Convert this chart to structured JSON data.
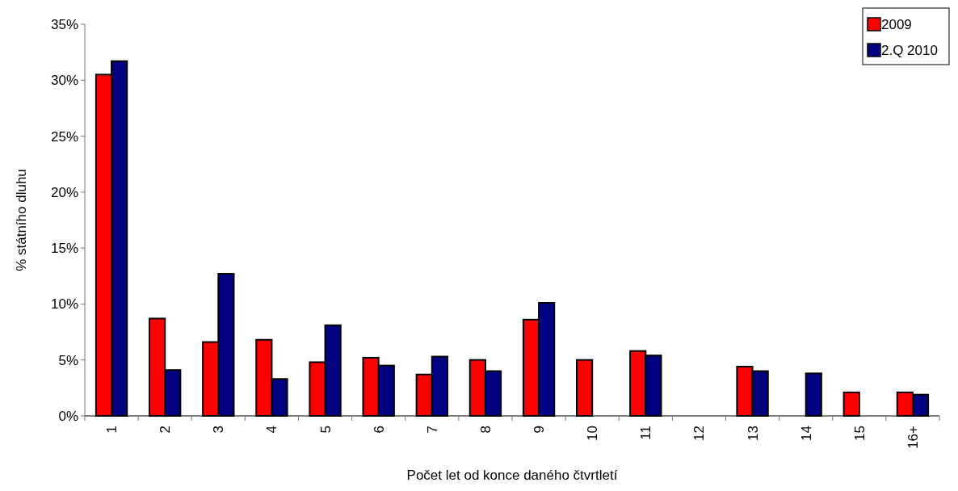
{
  "chart_data": {
    "type": "bar",
    "xlabel": "Počet let od konce daného čtvrtletí",
    "ylabel": "% státního dluhu",
    "categories": [
      "1",
      "2",
      "3",
      "4",
      "5",
      "6",
      "7",
      "8",
      "9",
      "10",
      "11",
      "12",
      "13",
      "14",
      "15",
      "16+"
    ],
    "series": [
      {
        "name": "2009",
        "color": "#ff0000",
        "values": [
          30.5,
          8.7,
          6.6,
          6.8,
          4.8,
          5.2,
          3.7,
          5.0,
          8.6,
          5.0,
          5.8,
          null,
          4.4,
          null,
          2.1,
          2.1
        ]
      },
      {
        "name": "2.Q 2010",
        "color": "#000080",
        "values": [
          31.7,
          4.1,
          12.7,
          3.3,
          8.1,
          4.5,
          5.3,
          4.0,
          10.1,
          null,
          5.4,
          0,
          4.0,
          3.8,
          0,
          1.9
        ]
      }
    ],
    "ylim": [
      0,
      35
    ],
    "yticks": [
      {
        "value": 0,
        "label": "0%"
      },
      {
        "value": 5,
        "label": "5%"
      },
      {
        "value": 10,
        "label": "10%"
      },
      {
        "value": 15,
        "label": "15%"
      },
      {
        "value": 20,
        "label": "20%"
      },
      {
        "value": 25,
        "label": "25%"
      },
      {
        "value": 30,
        "label": "30%"
      },
      {
        "value": 35,
        "label": "35%"
      }
    ],
    "legend": "top right",
    "grid": false
  }
}
